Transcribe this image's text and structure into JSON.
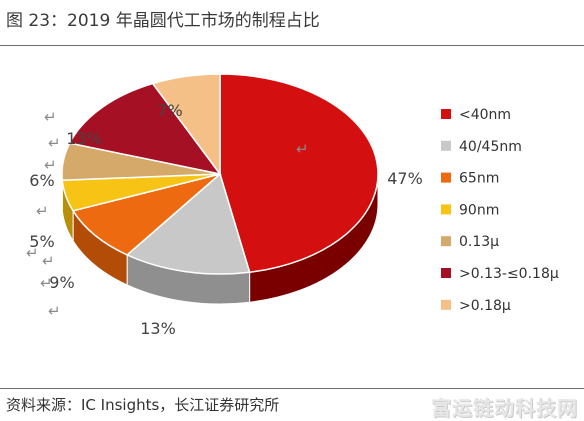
{
  "figure": {
    "title": "图 23：2019 年晶圆代工市场的制程占比",
    "source": "资料来源：IC Insights，长江证券研究所",
    "watermark": "富运链动科技网"
  },
  "chart_data": {
    "type": "pie",
    "style": "3d",
    "legend_position": "right",
    "categories": [
      "<40nm",
      "40/45nm",
      "65nm",
      "90nm",
      "0.13μ",
      ">0.13-≤0.18μ",
      ">0.18μ"
    ],
    "values": [
      47,
      13,
      9,
      5,
      6,
      13,
      7
    ],
    "labels": [
      "47%",
      "13%",
      "9%",
      "5%",
      "6%",
      "13%",
      "7%"
    ],
    "colors": [
      "#d40f0f",
      "#c8c8c8",
      "#ee6a10",
      "#f7c314",
      "#d4a96a",
      "#a51025",
      "#f5c088"
    ],
    "side_colors": [
      "#7a0000",
      "#8f8f8f",
      "#b24c06",
      "#b88f0a",
      "#9b7640",
      "#64000e",
      "#c09060"
    ]
  }
}
